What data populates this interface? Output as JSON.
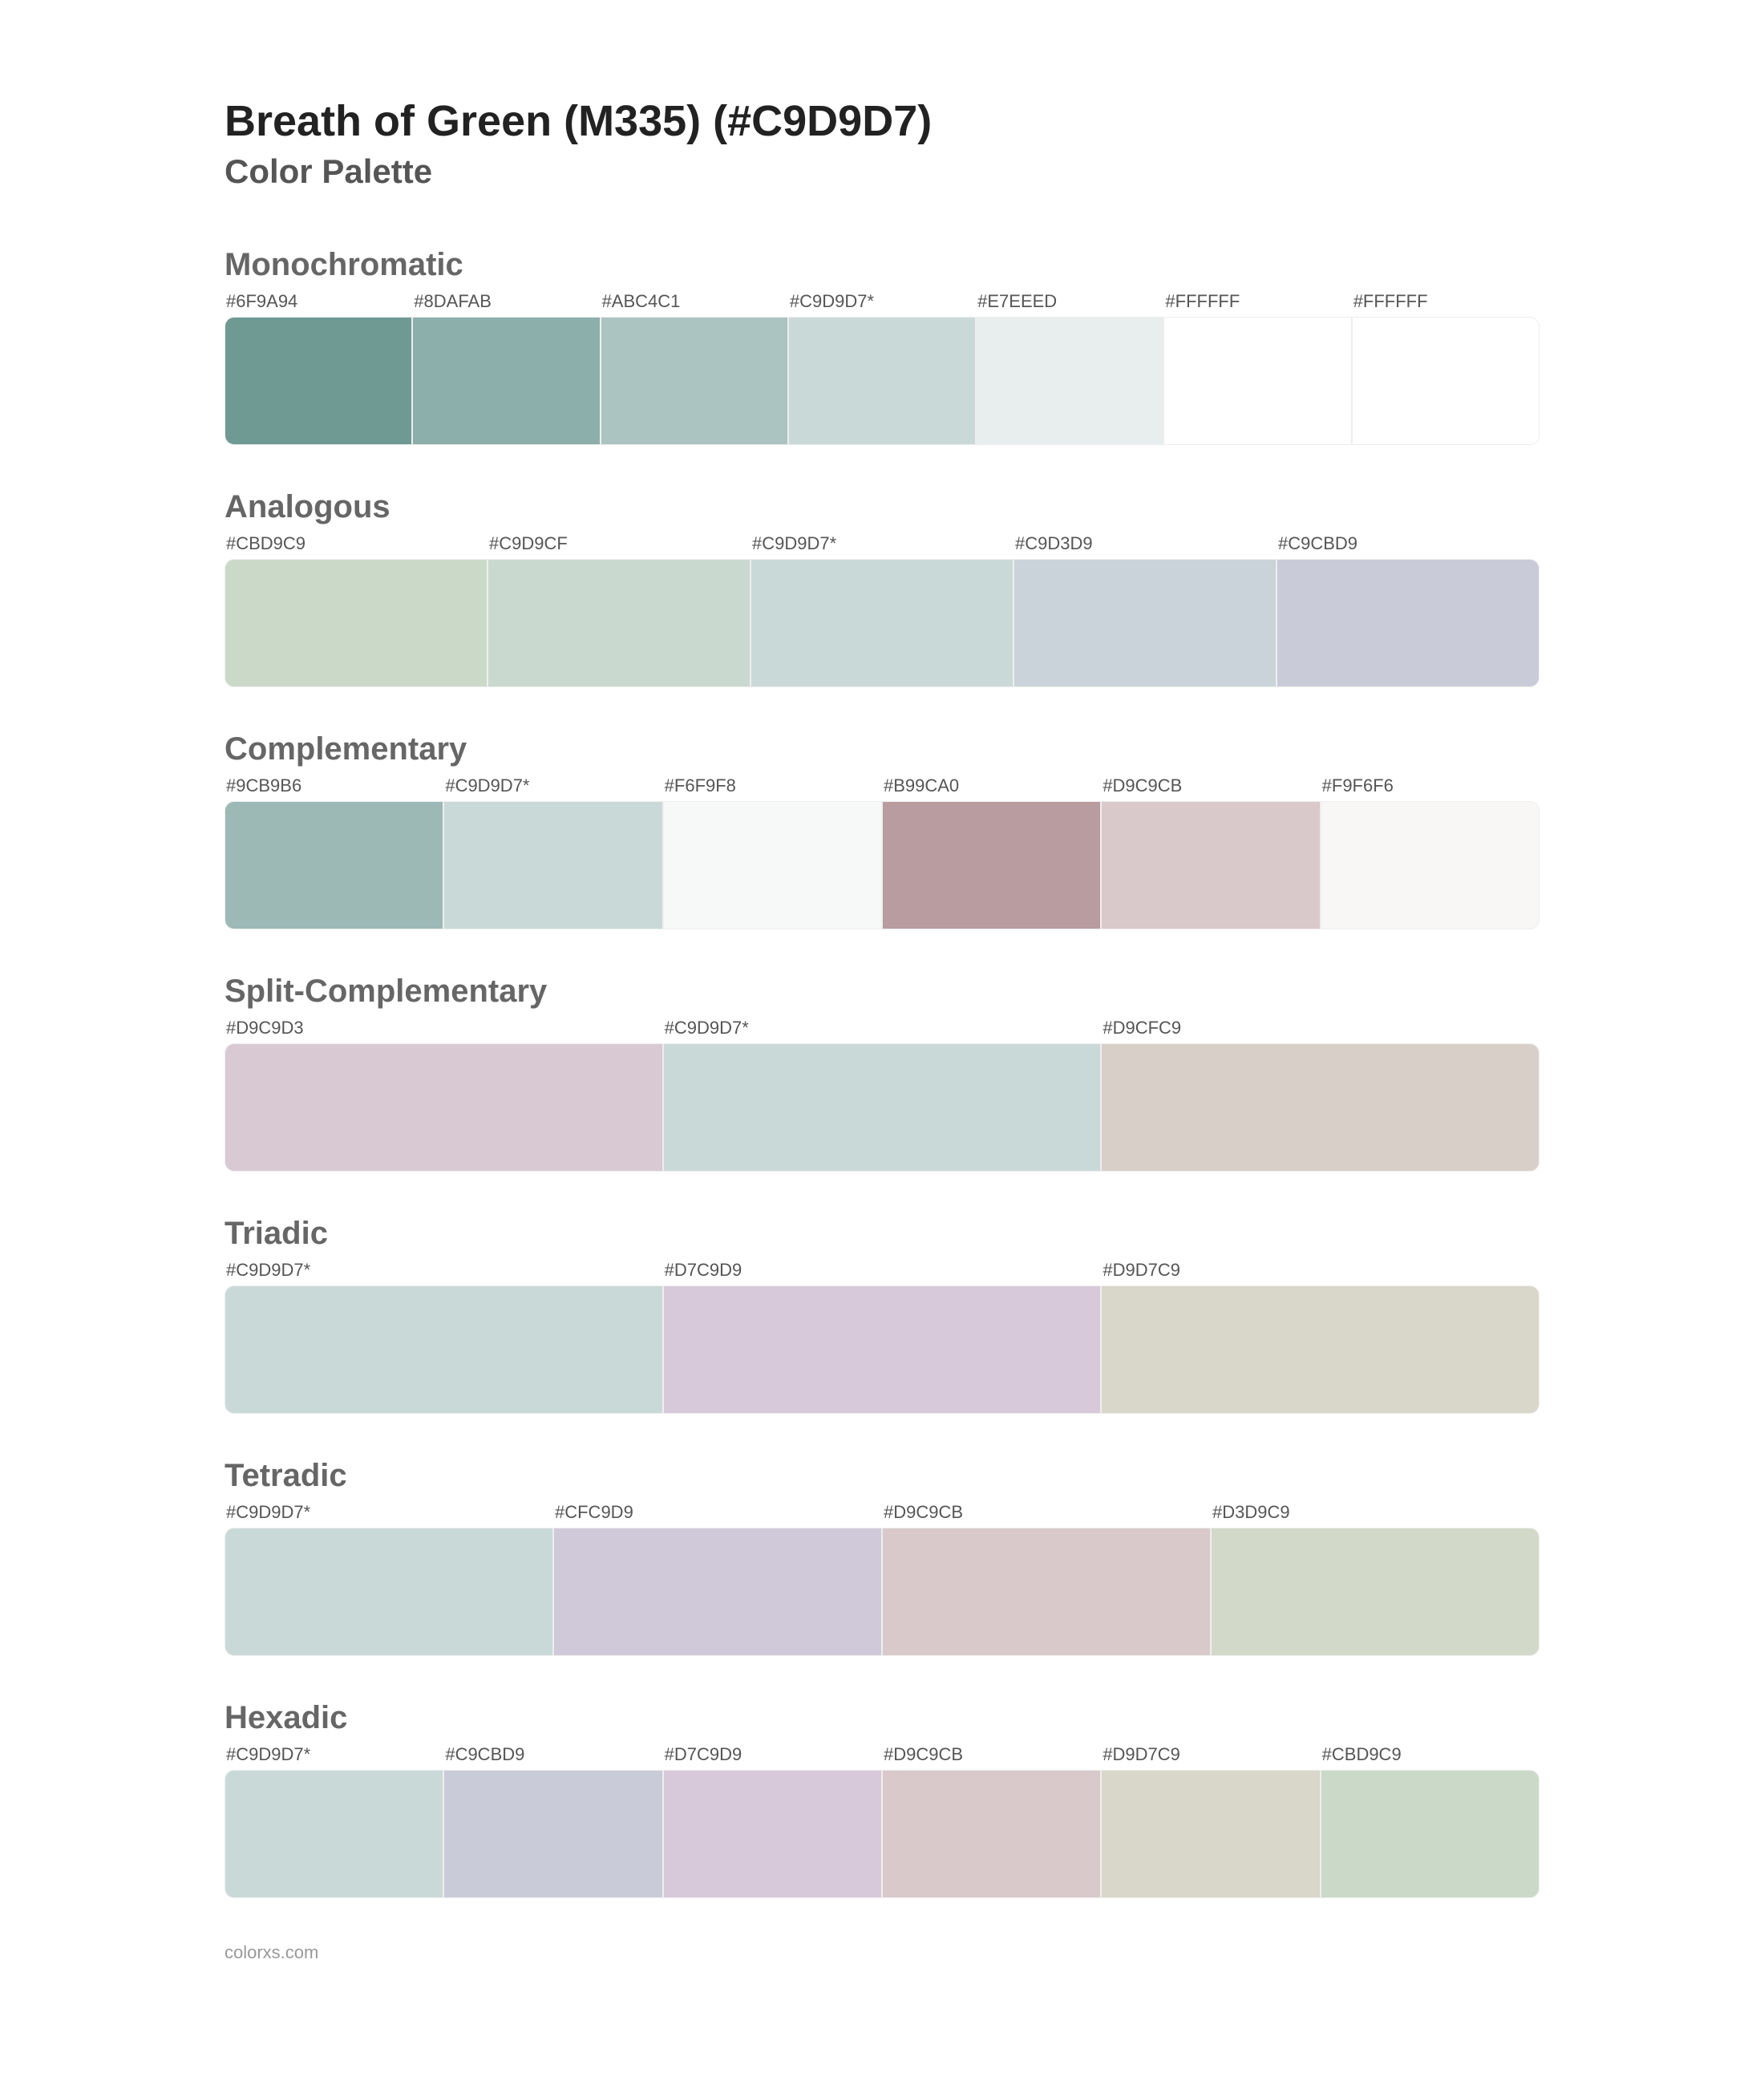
{
  "title": "Breath of Green (M335) (#C9D9D7)",
  "subtitle": "Color Palette",
  "footer": "colorxs.com",
  "swatch_height": 160,
  "border_radius": 12,
  "background_color": "#ffffff",
  "title_color": "#222222",
  "subtitle_color": "#555555",
  "section_title_color": "#666666",
  "label_color": "#555555",
  "title_fontsize": 54,
  "subtitle_fontsize": 42,
  "section_title_fontsize": 40,
  "label_fontsize": 22,
  "sections": [
    {
      "name": "Monochromatic",
      "colors": [
        {
          "label": "#6F9A94",
          "hex": "#6F9A94"
        },
        {
          "label": "#8DAFAB",
          "hex": "#8DAFAB"
        },
        {
          "label": "#ABC4C1",
          "hex": "#ABC4C1"
        },
        {
          "label": "#C9D9D7*",
          "hex": "#C9D9D7"
        },
        {
          "label": "#E7EEED",
          "hex": "#E7EEED"
        },
        {
          "label": "#FFFFFF",
          "hex": "#FFFFFF"
        },
        {
          "label": "#FFFFFF",
          "hex": "#FFFFFF"
        }
      ]
    },
    {
      "name": "Analogous",
      "colors": [
        {
          "label": "#CBD9C9",
          "hex": "#CBD9C9"
        },
        {
          "label": "#C9D9CF",
          "hex": "#C9D9CF"
        },
        {
          "label": "#C9D9D7*",
          "hex": "#C9D9D7"
        },
        {
          "label": "#C9D3D9",
          "hex": "#C9D3D9"
        },
        {
          "label": "#C9CBD9",
          "hex": "#C9CBD9"
        }
      ]
    },
    {
      "name": "Complementary",
      "colors": [
        {
          "label": "#9CB9B6",
          "hex": "#9CB9B6"
        },
        {
          "label": "#C9D9D7*",
          "hex": "#C9D9D7"
        },
        {
          "label": "#F6F9F8",
          "hex": "#F6F9F8"
        },
        {
          "label": "#B99CA0",
          "hex": "#B99CA0"
        },
        {
          "label": "#D9C9CB",
          "hex": "#D9C9CB"
        },
        {
          "label": "#F9F6F6",
          "hex": "#F9F6F6"
        }
      ]
    },
    {
      "name": "Split-Complementary",
      "colors": [
        {
          "label": "#D9C9D3",
          "hex": "#D9C9D3"
        },
        {
          "label": "#C9D9D7*",
          "hex": "#C9D9D7"
        },
        {
          "label": "#D9CFC9",
          "hex": "#D9CFC9"
        }
      ]
    },
    {
      "name": "Triadic",
      "colors": [
        {
          "label": "#C9D9D7*",
          "hex": "#C9D9D7"
        },
        {
          "label": "#D7C9D9",
          "hex": "#D7C9D9"
        },
        {
          "label": "#D9D7C9",
          "hex": "#D9D7C9"
        }
      ]
    },
    {
      "name": "Tetradic",
      "colors": [
        {
          "label": "#C9D9D7*",
          "hex": "#C9D9D7"
        },
        {
          "label": "#CFC9D9",
          "hex": "#CFC9D9"
        },
        {
          "label": "#D9C9CB",
          "hex": "#D9C9CB"
        },
        {
          "label": "#D3D9C9",
          "hex": "#D3D9C9"
        }
      ]
    },
    {
      "name": "Hexadic",
      "colors": [
        {
          "label": "#C9D9D7*",
          "hex": "#C9D9D7"
        },
        {
          "label": "#C9CBD9",
          "hex": "#C9CBD9"
        },
        {
          "label": "#D7C9D9",
          "hex": "#D7C9D9"
        },
        {
          "label": "#D9C9CB",
          "hex": "#D9C9CB"
        },
        {
          "label": "#D9D7C9",
          "hex": "#D9D7C9"
        },
        {
          "label": "#CBD9C9",
          "hex": "#CBD9C9"
        }
      ]
    }
  ]
}
